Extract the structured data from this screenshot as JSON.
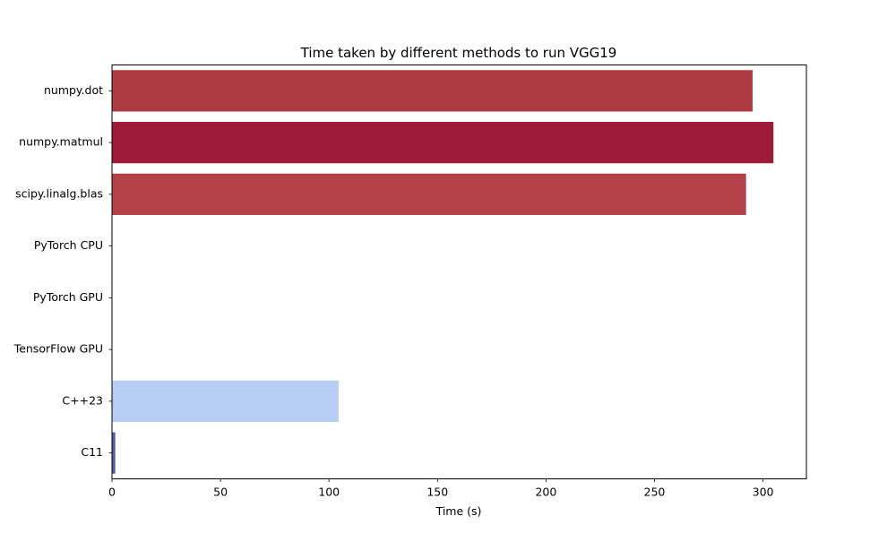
{
  "chart_data": {
    "type": "bar",
    "orientation": "horizontal",
    "title": "Time taken by different methods to run VGG19",
    "xlabel": "Time (s)",
    "ylabel": "",
    "xlim": [
      0,
      320
    ],
    "xticks": [
      0,
      50,
      100,
      150,
      200,
      250,
      300
    ],
    "grid": false,
    "categories": [
      "numpy.dot",
      "numpy.matmul",
      "scipy.linalg.blas",
      "PyTorch CPU",
      "PyTorch GPU",
      "TensorFlow GPU",
      "C++23",
      "C11"
    ],
    "values": [
      295.2,
      304.8,
      292.2,
      0.05,
      0.05,
      0.05,
      104.4,
      1.5
    ],
    "colors": [
      "#ae3a41",
      "#9e1a36",
      "#b44047",
      "#4a60c6",
      "#4a60c6",
      "#4a60c6",
      "#b7cdf3",
      "#4e5fae"
    ]
  }
}
